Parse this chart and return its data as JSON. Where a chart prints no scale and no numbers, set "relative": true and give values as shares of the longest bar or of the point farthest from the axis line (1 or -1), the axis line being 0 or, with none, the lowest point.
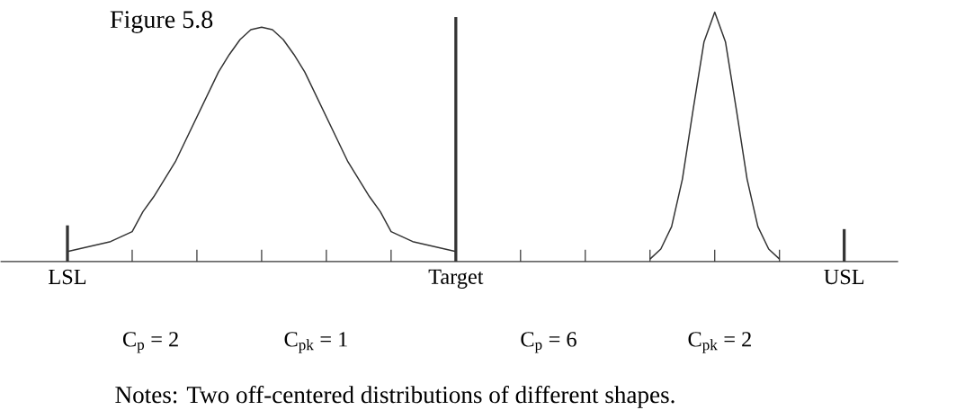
{
  "chart_data": {
    "type": "line",
    "title": "Figure 5.8",
    "relative": true,
    "categories": [
      "LSL",
      null,
      null,
      null,
      null,
      null,
      null,
      null,
      null,
      null,
      null,
      null,
      null,
      null,
      null,
      null,
      null,
      null,
      null,
      null,
      null,
      null,
      null,
      null,
      null,
      null,
      null,
      null,
      null,
      null,
      null,
      null,
      null,
      null,
      null,
      null,
      "Target",
      null,
      null,
      null,
      null,
      null,
      null,
      null,
      null,
      null,
      null,
      null,
      null,
      null,
      null,
      null,
      null,
      null,
      null,
      null,
      null,
      null,
      null,
      null,
      null,
      null,
      null,
      null,
      null,
      null,
      null,
      null,
      null,
      null,
      null,
      null,
      "USL"
    ],
    "series": [
      {
        "color": "#333333",
        "values": [
          0.04,
          0.05,
          0.06,
          0.07,
          0.08,
          0.1,
          0.12,
          0.2,
          0.26,
          0.33,
          0.4,
          0.49,
          0.58,
          0.67,
          0.76,
          0.83,
          0.89,
          0.93,
          0.94,
          0.93,
          0.89,
          0.83,
          0.76,
          0.67,
          0.58,
          0.49,
          0.4,
          0.33,
          0.26,
          0.2,
          0.12,
          0.1,
          0.08,
          0.07,
          0.06,
          0.05,
          0.04,
          null,
          null,
          null,
          null,
          null,
          null,
          null,
          null,
          null,
          null,
          null,
          null,
          null,
          null,
          null,
          null,
          null,
          null,
          null,
          null,
          null,
          null,
          null,
          null,
          null,
          null,
          null,
          null,
          null,
          null,
          null,
          null,
          null,
          null,
          null,
          null
        ]
      },
      {
        "color": "#333333",
        "values": [
          null,
          null,
          null,
          null,
          null,
          null,
          null,
          null,
          null,
          null,
          null,
          null,
          null,
          null,
          null,
          null,
          null,
          null,
          null,
          null,
          null,
          null,
          null,
          null,
          null,
          null,
          null,
          null,
          null,
          null,
          null,
          null,
          null,
          null,
          null,
          null,
          null,
          null,
          null,
          null,
          null,
          null,
          null,
          null,
          null,
          null,
          null,
          null,
          null,
          null,
          null,
          null,
          null,
          null,
          0.01,
          0.05,
          0.14,
          0.33,
          0.61,
          0.88,
          1.0,
          0.88,
          0.61,
          0.33,
          0.14,
          0.05,
          0.01,
          null,
          null,
          null,
          null,
          null,
          null
        ]
      }
    ],
    "ref_lines": [
      {
        "axis": "x",
        "value": "LSL",
        "color": "#333333"
      },
      {
        "axis": "x",
        "value": "Target",
        "color": "#333333"
      },
      {
        "axis": "x",
        "value": "USL",
        "color": "#333333"
      }
    ],
    "annotations": [
      "C$_{p}$  = 2",
      "C$_{pk}$ =  1",
      "C$_{p}$  = 6",
      "C$_{pk}$ =  2",
      "Notes: Two off-centered distributions of different shapes."
    ]
  }
}
